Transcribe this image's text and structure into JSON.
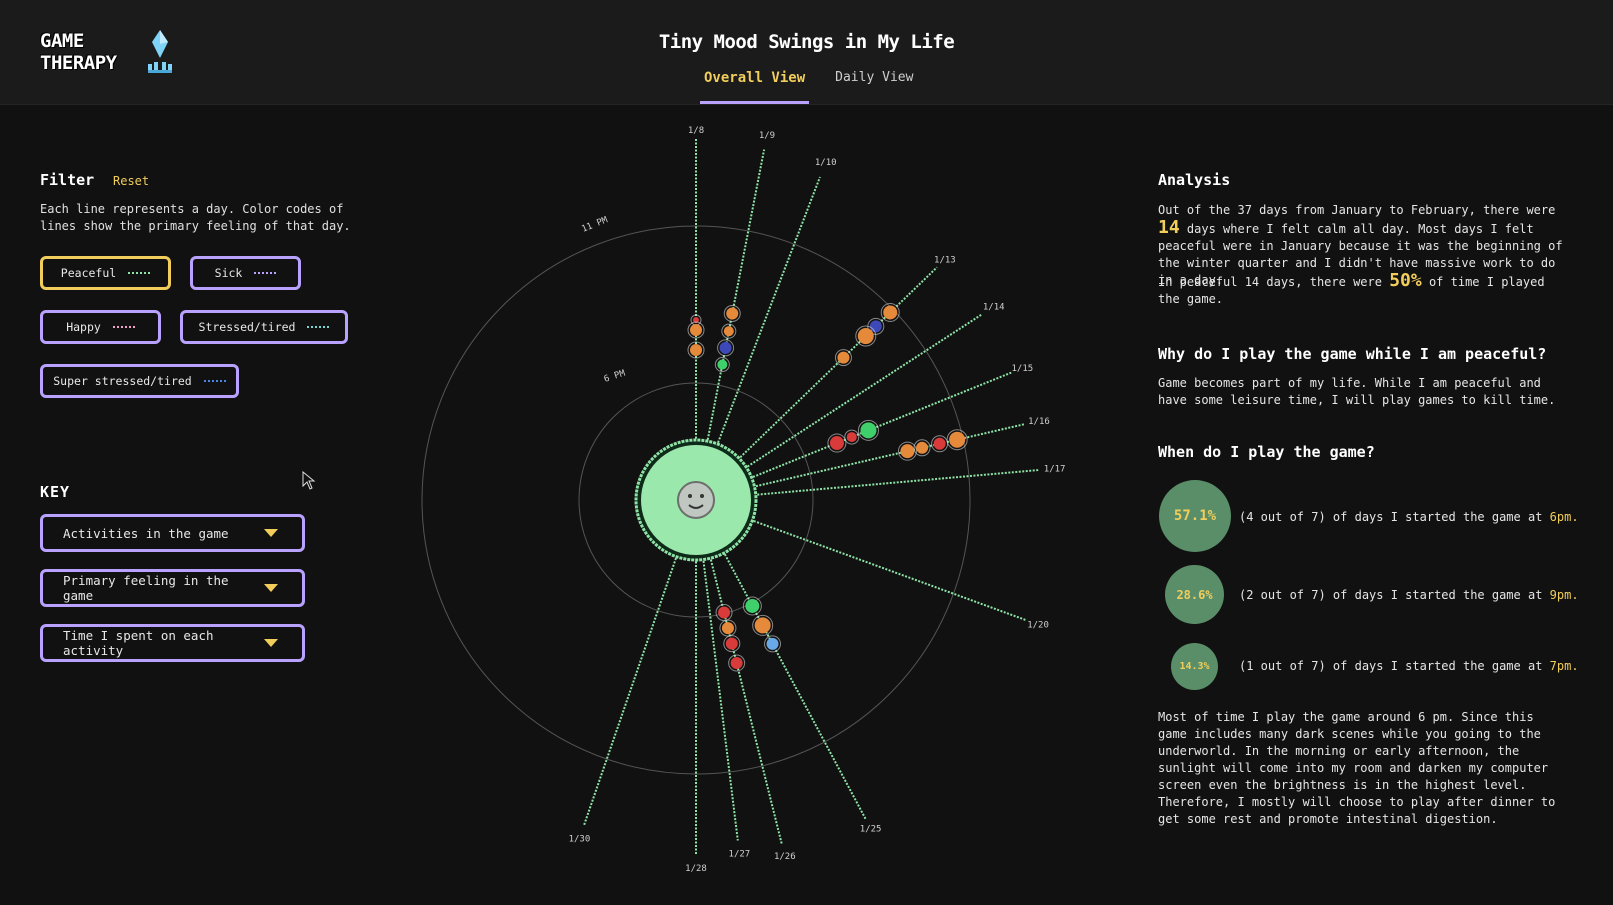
{
  "header": {
    "logo_line1": "GAME",
    "logo_line2": "THERAPY",
    "title": "Tiny Mood Swings in My Life",
    "tabs": [
      {
        "label": "Overall View",
        "active": true
      },
      {
        "label": "Daily View",
        "active": false
      }
    ]
  },
  "filter": {
    "title": "Filter",
    "reset_label": "Reset",
    "description": "Each line represents a day. Color codes of lines show the primary feeling of that day.",
    "options": [
      {
        "label": "Peaceful",
        "color": "#8ee4a7",
        "selected": true
      },
      {
        "label": "Sick",
        "color": "#b9a2ff",
        "selected": false
      },
      {
        "label": "Happy",
        "color": "#f2a3c7",
        "selected": false
      },
      {
        "label": "Stressed/tired",
        "color": "#74d6d0",
        "selected": false
      },
      {
        "label": "Super stressed/tired",
        "color": "#4a86e8",
        "selected": false
      }
    ]
  },
  "key": {
    "title": "KEY",
    "dropdowns": [
      {
        "label": "Activities in the game"
      },
      {
        "label": "Primary feeling in the game"
      },
      {
        "label": "Time I spent on each activity"
      }
    ]
  },
  "chart": {
    "ring_labels": {
      "inner": "6 PM",
      "outer": "11 PM"
    },
    "days": [
      {
        "date": "1/8"
      },
      {
        "date": "1/9"
      },
      {
        "date": "1/10"
      },
      {
        "date": "1/13"
      },
      {
        "date": "1/14"
      },
      {
        "date": "1/15"
      },
      {
        "date": "1/16"
      },
      {
        "date": "1/17"
      },
      {
        "date": "1/20"
      },
      {
        "date": "1/25"
      },
      {
        "date": "1/26"
      },
      {
        "date": "1/27"
      },
      {
        "date": "1/28"
      },
      {
        "date": "1/30"
      }
    ],
    "colors": {
      "line": "#8ee4a7",
      "center": "#9be8ad",
      "orange": "#e58a3b",
      "red": "#d93a3a",
      "blue": "#3d49b8",
      "green": "#3fd06b",
      "lightblue": "#6aa9e8"
    }
  },
  "analysis": {
    "title": "Analysis",
    "p1_a": "Out of the 37 days from January to February, there were",
    "p1_num": "14",
    "p1_b": "days where I felt calm all day. Most days I felt peaceful were in January because it was the beginning of the winter quarter and I didn't have massive work to do in a day.",
    "p2_a": "In peaceful 14 days, there were",
    "p2_num": "50%",
    "p2_b": "of time I played the game.",
    "why_title": "Why do I play the game while I am peaceful?",
    "why_text": "Game becomes part of my life. While I am peaceful and have some leisure time, I will play games to kill time.",
    "when_title": "When do I play the game?",
    "stats": [
      {
        "pct": "57.1%",
        "text": "(4 out of 7) of days I started the game at",
        "time": "6pm."
      },
      {
        "pct": "28.6%",
        "text": "(2 out of 7) of days I started the game at",
        "time": "9pm."
      },
      {
        "pct": "14.3%",
        "text": "(1 out of 7) of days I started the game at",
        "time": "7pm."
      }
    ],
    "closing": "Most of time I play the game around 6 pm. Since this game includes many dark scenes while you going to the underworld. In the morning or early afternoon, the sunlight will come into my room and darken my computer screen even the brightness is in the highest level. Therefore, I mostly will choose to play after dinner to get some rest and promote intestinal digestion."
  }
}
